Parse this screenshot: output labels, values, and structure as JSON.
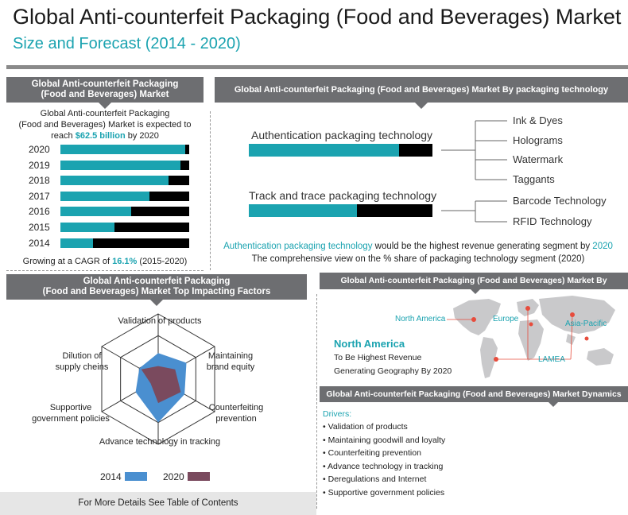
{
  "header": {
    "title": "Global Anti-counterfeit Packaging (Food and Beverages) Market",
    "subtitle": "Size and Forecast (2014 - 2020)"
  },
  "market_panel": {
    "header_line1": "Global Anti-counterfeit Packaging",
    "header_line2": "(Food and Beverages) Market",
    "desc_line1": "Global Anti-counterfeit Packaging",
    "desc_line2": "(Food and Beverages) Market is expected to",
    "desc_reach": "reach",
    "desc_value": "$62.5 billion",
    "desc_by": "by 2020",
    "cagr_prefix": "Growing at a CAGR of",
    "cagr_value": "16.1%",
    "cagr_suffix": "(2015-2020)"
  },
  "tech_panel": {
    "header": "Global Anti-counterfeit Packaging (Food and Beverages) Market By packaging technology",
    "summary_highlight": "Authentication packaging technology",
    "summary_mid": "would be the highest revenue generating segment by",
    "summary_year": "2020",
    "summary_line2": "The comprehensive view on the % share of packaging technology segment (2020)"
  },
  "factors_panel": {
    "header_line1": "Global Anti-counterfeit Packaging",
    "header_line2": "(Food and Beverages) Market Top Impacting Factors"
  },
  "geo_panel": {
    "header": "Global Anti-counterfeit Packaging (Food and Beverages) Market By Geography",
    "regions": [
      "North America",
      "Europe",
      "Asia-Pacific",
      "LAMEA"
    ],
    "highlight_region": "North America",
    "highlight_line1": "To Be Highest Revenue",
    "highlight_line2": "Generating Geography By 2020"
  },
  "dynamics_panel": {
    "header": "Global Anti-counterfeit Packaging (Food and Beverages) Market Dynamics",
    "drivers_label": "Drivers:",
    "bullet": "•",
    "drivers": [
      "Validation of products",
      "Maintaining goodwill and loyalty",
      "Counterfeiting prevention",
      "Advance technology in tracking",
      "Deregulations and Internet",
      "Supportive government policies"
    ]
  },
  "footer": {
    "text": "For More Details See Table of Contents"
  },
  "colors": {
    "teal": "#1ba3b0",
    "dark": "#000000",
    "gray_header": "#6d6e71",
    "radar_2014": "#4a8fd0",
    "radar_2020": "#7a4a5e"
  },
  "chart_data": [
    {
      "type": "bar",
      "orientation": "horizontal",
      "title": "Global Anti-counterfeit Packaging (Food and Beverages) Market",
      "categories": [
        "2020",
        "2019",
        "2018",
        "2017",
        "2016",
        "2015",
        "2014"
      ],
      "series": [
        {
          "name": "Market share (teal)",
          "values": [
            97,
            93,
            84,
            69,
            55,
            42,
            25
          ]
        },
        {
          "name": "Remainder (black)",
          "values": [
            3,
            7,
            16,
            31,
            45,
            58,
            75
          ]
        }
      ],
      "xlim": [
        0,
        100
      ]
    },
    {
      "type": "bar",
      "orientation": "horizontal",
      "title": "By packaging technology",
      "categories": [
        "Authentication packaging technology",
        "Track and trace packaging technology"
      ],
      "series": [
        {
          "name": "Share (teal)",
          "values": [
            82,
            59
          ]
        },
        {
          "name": "Remainder (black)",
          "values": [
            18,
            41
          ]
        }
      ],
      "xlim": [
        0,
        100
      ],
      "sub_segments": {
        "Authentication packaging technology": [
          "Ink & Dyes",
          "Holograms",
          "Watermark",
          "Taggants"
        ],
        "Track and trace packaging technology": [
          "Barcode Technology",
          "RFID Technology"
        ]
      }
    },
    {
      "type": "radar",
      "title": "Top Impacting Factors",
      "axes": [
        "Validation of products",
        "Maintaining brand equity",
        "Counterfeiting prevention",
        "Advance technology in tracking",
        "Supportive government policies",
        "Dilution of supply chains"
      ],
      "axis_labels": [
        [
          "Validation of products"
        ],
        [
          "Maintaining",
          "brand equity"
        ],
        [
          "Counterfeiting",
          "prevention"
        ],
        [
          "Advance technology in tracking"
        ],
        [
          "Supportive",
          "government policies"
        ],
        [
          "Dilution of",
          "supply cheins"
        ]
      ],
      "rlim": [
        0,
        3
      ],
      "series": [
        {
          "name": "2014",
          "values": [
            1.2,
            1.5,
            1.4,
            2.0,
            1.2,
            1.0
          ]
        },
        {
          "name": "2020",
          "values": [
            0.6,
            0.9,
            1.2,
            1.1,
            0.4,
            0.9
          ]
        }
      ],
      "legend": [
        "2014",
        "2020"
      ]
    }
  ]
}
